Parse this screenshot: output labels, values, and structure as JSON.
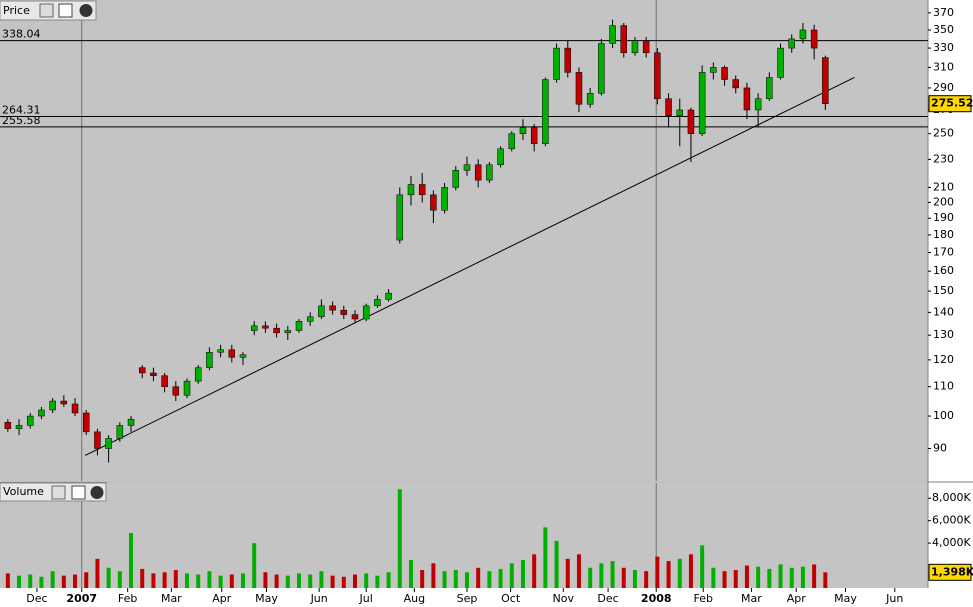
{
  "chart_data": [
    {
      "type": "candlestick",
      "title": "Price",
      "log_scale": true,
      "open": [
        98,
        96,
        97,
        100,
        102,
        105,
        104,
        101,
        95,
        90,
        93,
        97,
        117,
        115,
        114,
        110,
        107,
        112,
        117,
        123,
        124,
        121,
        132,
        134,
        133,
        131,
        132,
        136,
        138,
        143,
        141,
        139,
        137,
        143,
        146,
        177,
        205,
        212,
        205,
        195,
        210,
        222,
        226,
        215,
        226,
        238,
        250,
        255,
        242,
        298,
        330,
        305,
        275,
        285,
        335,
        355,
        325,
        338,
        325,
        280,
        265,
        270,
        250,
        305,
        310,
        298,
        290,
        270,
        280,
        300,
        330,
        340,
        350,
        320
      ],
      "high": [
        99,
        99,
        101,
        103,
        106,
        107,
        106,
        102,
        96,
        94,
        98,
        100,
        118,
        117,
        115,
        112,
        113,
        118,
        125,
        126,
        126,
        123,
        136,
        136,
        135,
        134,
        137,
        140,
        146,
        145,
        143,
        141,
        144,
        148,
        151,
        210,
        218,
        220,
        208,
        213,
        225,
        232,
        230,
        228,
        240,
        252,
        262,
        258,
        300,
        335,
        338,
        310,
        290,
        340,
        362,
        358,
        342,
        342,
        330,
        285,
        280,
        272,
        312,
        315,
        312,
        302,
        295,
        285,
        305,
        335,
        345,
        358,
        356,
        322
      ],
      "low": [
        95,
        94,
        96,
        99,
        101,
        103,
        100,
        94,
        88,
        86,
        92,
        95,
        113,
        112,
        108,
        105,
        106,
        111,
        116,
        121,
        119,
        118,
        130,
        131,
        129,
        128,
        131,
        134,
        137,
        139,
        137,
        135,
        136,
        142,
        145,
        175,
        198,
        200,
        187,
        193,
        208,
        218,
        210,
        213,
        224,
        236,
        245,
        236,
        240,
        295,
        300,
        268,
        272,
        283,
        330,
        320,
        322,
        320,
        275,
        255,
        240,
        228,
        248,
        298,
        292,
        285,
        262,
        255,
        278,
        298,
        325,
        335,
        318,
        270
      ],
      "close": [
        96,
        97,
        100,
        102,
        105,
        104,
        101,
        95,
        90,
        93,
        97,
        99,
        115,
        114,
        110,
        107,
        112,
        117,
        123,
        124,
        121,
        122,
        134,
        133,
        131,
        132,
        136,
        138,
        143,
        141,
        139,
        137,
        143,
        146,
        149,
        205,
        212,
        205,
        195,
        210,
        222,
        226,
        215,
        226,
        238,
        250,
        255,
        242,
        298,
        330,
        305,
        275,
        285,
        335,
        355,
        325,
        338,
        325,
        280,
        265,
        270,
        250,
        305,
        310,
        298,
        290,
        270,
        280,
        300,
        330,
        340,
        350,
        330,
        275.52
      ],
      "up_color": "#00b000",
      "down_color": "#c00000",
      "current_price": 275.52,
      "levels": [
        338.04,
        264.31,
        255.58
      ],
      "trendline": {
        "x": [
          6.9,
          75.6
        ],
        "y": [
          88,
          300
        ]
      },
      "ylim": [
        81,
        382
      ],
      "yticks": [
        90,
        100,
        110,
        120,
        130,
        140,
        150,
        160,
        170,
        180,
        190,
        200,
        210,
        230,
        250,
        270,
        290,
        310,
        330,
        350,
        370
      ],
      "xlim": [
        -0.7,
        81.9
      ],
      "xticks": [
        {
          "value": 2.6,
          "label": "Dec"
        },
        {
          "value": 6.6,
          "label": "2007"
        },
        {
          "value": 10.7,
          "label": "Feb"
        },
        {
          "value": 14.6,
          "label": "Mar"
        },
        {
          "value": 19.1,
          "label": "Apr"
        },
        {
          "value": 23.1,
          "label": "May"
        },
        {
          "value": 27.8,
          "label": "Jun"
        },
        {
          "value": 32,
          "label": "Jul"
        },
        {
          "value": 36.3,
          "label": "Aug"
        },
        {
          "value": 41,
          "label": "Sep"
        },
        {
          "value": 44.9,
          "label": "Oct"
        },
        {
          "value": 49.6,
          "label": "Nov"
        },
        {
          "value": 53.6,
          "label": "Dec"
        },
        {
          "value": 57.9,
          "label": "2008"
        },
        {
          "value": 62.1,
          "label": "Feb"
        },
        {
          "value": 66.4,
          "label": "Mar"
        },
        {
          "value": 70.4,
          "label": "Apr"
        },
        {
          "value": 74.8,
          "label": "May"
        },
        {
          "value": 79.2,
          "label": "Jun"
        }
      ]
    },
    {
      "type": "bar",
      "title": "Volume",
      "values": [
        1300,
        1100,
        1200,
        1000,
        1500,
        1100,
        1200,
        1400,
        2600,
        1800,
        1500,
        4900,
        1700,
        1300,
        1400,
        1600,
        1300,
        1200,
        1500,
        1100,
        1200,
        1300,
        4000,
        1400,
        1200,
        1100,
        1300,
        1200,
        1500,
        1100,
        1000,
        1200,
        1300,
        1100,
        1400,
        8800,
        2500,
        1600,
        2200,
        1500,
        1600,
        1400,
        1800,
        1500,
        1700,
        2200,
        2500,
        3000,
        5400,
        4200,
        2600,
        3000,
        1800,
        2200,
        2400,
        1800,
        1600,
        1500,
        2800,
        2400,
        2600,
        3000,
        3800,
        1800,
        1500,
        1600,
        2000,
        1900,
        1700,
        2100,
        1800,
        1900,
        2100,
        1398
      ],
      "current_volume": {
        "value": 1398,
        "label": "1,398K"
      },
      "ylim": [
        0,
        9000
      ],
      "yticks": [
        {
          "value": 4000,
          "label": "4,000K"
        },
        {
          "value": 6000,
          "label": "6,000K"
        },
        {
          "value": 8000,
          "label": "8,000K"
        }
      ]
    }
  ]
}
